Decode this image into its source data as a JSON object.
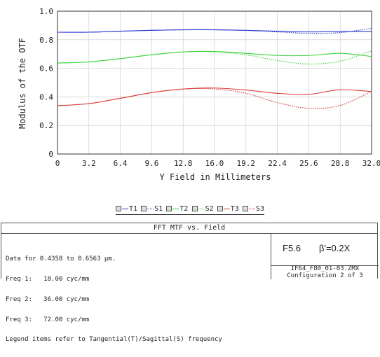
{
  "chart_data": {
    "type": "line",
    "xlabel": "Y Field in Millimeters",
    "ylabel": "Modulus of the OTF",
    "xlim": [
      0,
      32.0
    ],
    "ylim": [
      0,
      1.0
    ],
    "xticks": [
      "0",
      "3.2",
      "6.4",
      "9.6",
      "12.8",
      "16.0",
      "19.2",
      "22.4",
      "25.6",
      "28.8",
      "32.0"
    ],
    "yticks": [
      "0",
      "0.2",
      "0.4",
      "0.6",
      "0.8",
      "1.0"
    ],
    "grid": true,
    "legend_position": "bottom",
    "series": [
      {
        "name": "T1",
        "color": "#2b3bd0",
        "style": "solid",
        "x": [
          0,
          3.2,
          6.4,
          9.6,
          12.8,
          16.0,
          19.2,
          22.4,
          25.6,
          28.8,
          32.0
        ],
        "y": [
          0.853,
          0.853,
          0.86,
          0.866,
          0.87,
          0.87,
          0.866,
          0.86,
          0.855,
          0.858,
          0.857
        ]
      },
      {
        "name": "S1",
        "color": "#2b3bd0",
        "style": "dotted",
        "x": [
          0,
          3.2,
          6.4,
          9.6,
          12.8,
          16.0,
          19.2,
          22.4,
          25.6,
          28.8,
          32.0
        ],
        "y": [
          0.853,
          0.853,
          0.86,
          0.866,
          0.87,
          0.87,
          0.865,
          0.855,
          0.845,
          0.85,
          0.88
        ]
      },
      {
        "name": "T2",
        "color": "#3cd23c",
        "style": "solid",
        "x": [
          0,
          3.2,
          6.4,
          9.6,
          12.8,
          16.0,
          19.2,
          22.4,
          25.6,
          28.8,
          32.0
        ],
        "y": [
          0.637,
          0.645,
          0.668,
          0.695,
          0.715,
          0.718,
          0.705,
          0.69,
          0.69,
          0.705,
          0.683
        ]
      },
      {
        "name": "S2",
        "color": "#3cd23c",
        "style": "dotted",
        "x": [
          0,
          3.2,
          6.4,
          9.6,
          12.8,
          16.0,
          19.2,
          22.4,
          25.6,
          28.8,
          32.0
        ],
        "y": [
          0.637,
          0.645,
          0.668,
          0.695,
          0.715,
          0.715,
          0.695,
          0.655,
          0.63,
          0.65,
          0.722
        ]
      },
      {
        "name": "T3",
        "color": "#d83a3a",
        "style": "solid",
        "x": [
          0,
          3.2,
          6.4,
          9.6,
          12.8,
          16.0,
          19.2,
          22.4,
          25.6,
          28.8,
          32.0
        ],
        "y": [
          0.338,
          0.353,
          0.39,
          0.43,
          0.455,
          0.462,
          0.448,
          0.425,
          0.418,
          0.45,
          0.437
        ]
      },
      {
        "name": "S3",
        "color": "#d83a3a",
        "style": "dotted",
        "x": [
          0,
          3.2,
          6.4,
          9.6,
          12.8,
          16.0,
          19.2,
          22.4,
          25.6,
          28.8,
          32.0
        ],
        "y": [
          0.338,
          0.353,
          0.39,
          0.43,
          0.455,
          0.455,
          0.425,
          0.36,
          0.32,
          0.34,
          0.44
        ]
      }
    ]
  },
  "legend": {
    "items": [
      {
        "label": "T1",
        "color": "#2b3bd0",
        "style": "solid"
      },
      {
        "label": "S1",
        "color": "#2b3bd0",
        "style": "dotted"
      },
      {
        "label": "T2",
        "color": "#3cd23c",
        "style": "solid"
      },
      {
        "label": "S2",
        "color": "#3cd23c",
        "style": "dotted"
      },
      {
        "label": "T3",
        "color": "#d83a3a",
        "style": "solid"
      },
      {
        "label": "S3",
        "color": "#d83a3a",
        "style": "dotted"
      }
    ]
  },
  "info": {
    "title": "FFT MTF vs. Field",
    "lines": [
      "Data for 0.4358 to 0.6563 µm.",
      "Freq 1:   18.00 cyc/mm",
      "Freq 2:   36.00 cyc/mm",
      "Freq 3:   72.00 cyc/mm",
      "Legend items refer to Tangential(T)/Sagittal(S) frequency"
    ],
    "fnumber": "F5.6",
    "magnification": "β'=0.2X",
    "file": "IF64_F80_01-03.ZMX",
    "configuration": "Configuration 2 of 3"
  }
}
